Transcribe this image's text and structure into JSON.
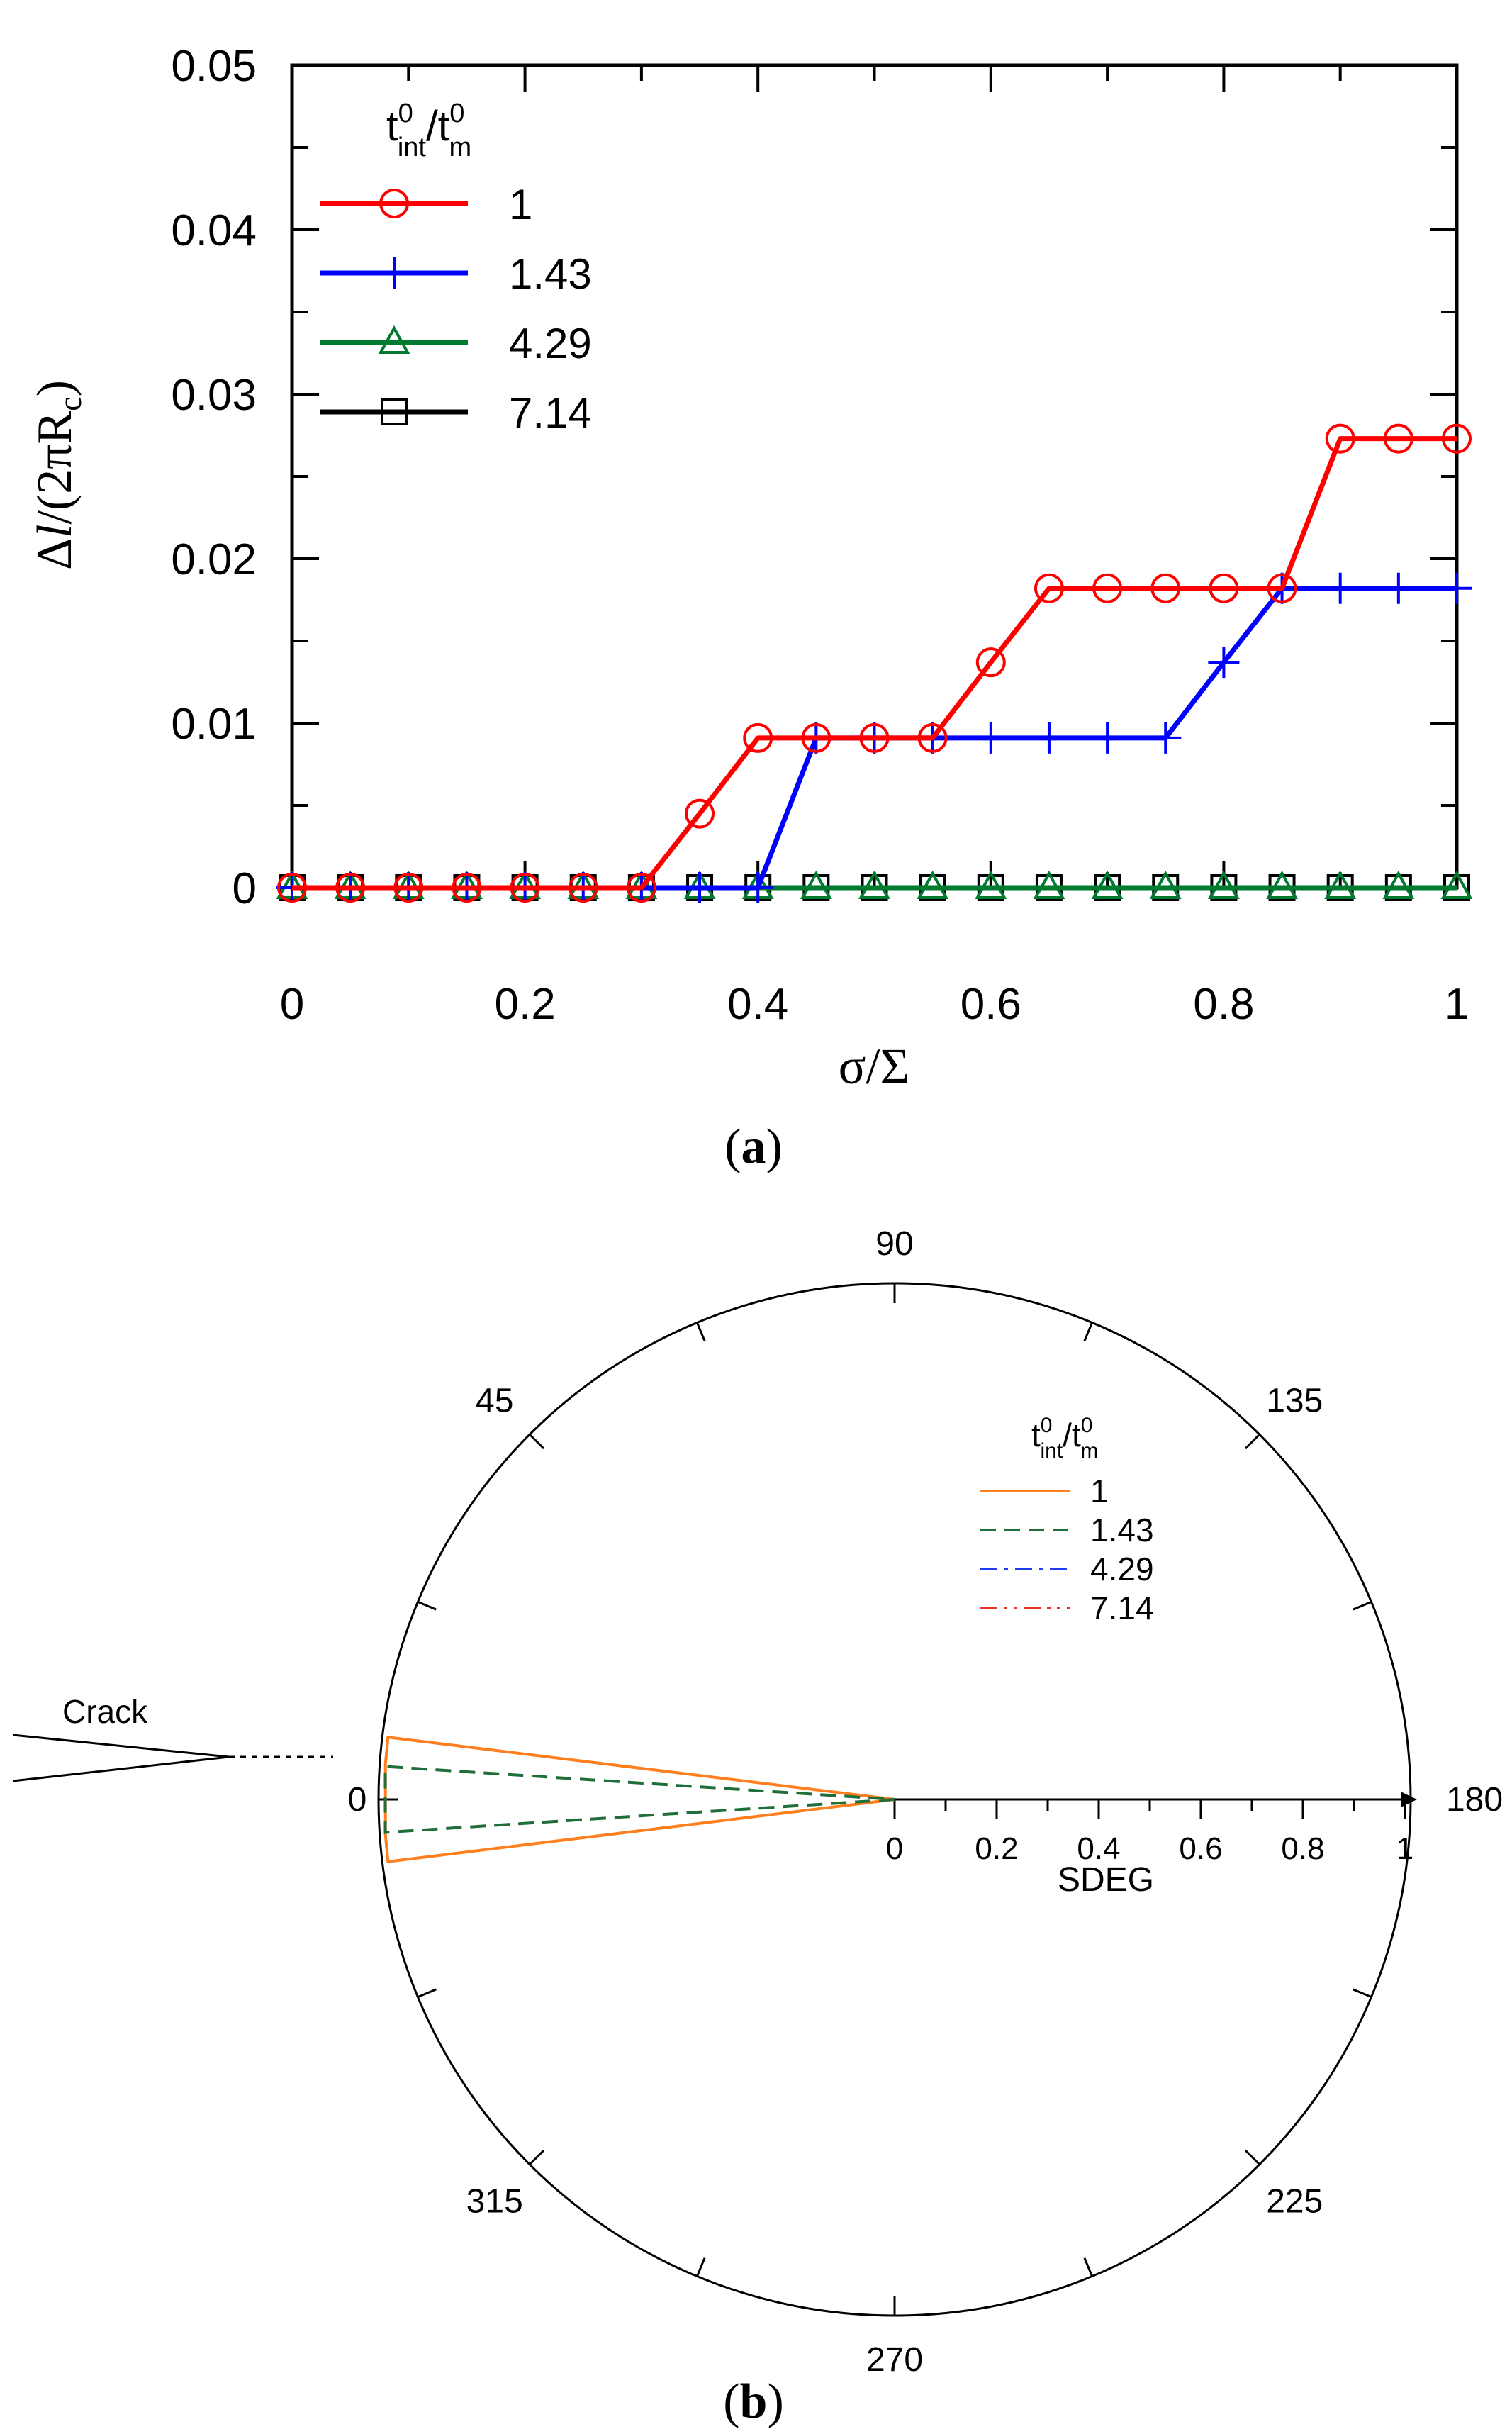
{
  "chart_data": [
    {
      "type": "line",
      "panel_label": "a",
      "xlabel": "σ/Σ",
      "ylabel": "Δl/(2πRc)",
      "xlim": [
        0,
        1
      ],
      "ylim": [
        0,
        0.05
      ],
      "x_ticks": [
        "0",
        "0.2",
        "0.4",
        "0.6",
        "0.8",
        "1"
      ],
      "y_ticks": [
        "0",
        "0.01",
        "0.02",
        "0.03",
        "0.04",
        "0.05"
      ],
      "legend_title": "t0int/t0m",
      "legend_title_parts": {
        "t1": "t",
        "s1": "0",
        "b1": "int",
        "slash": "/",
        "t2": "t",
        "s2": "0",
        "b2": "m"
      },
      "ylabel_parts": {
        "p1": "Δ",
        "p2": "l",
        "p3": "/(2π",
        "p4": "R",
        "p5": "c",
        "p6": ")"
      },
      "legend_position": "top-left",
      "x": [
        0,
        0.05,
        0.1,
        0.15,
        0.2,
        0.25,
        0.3,
        0.35,
        0.4,
        0.45,
        0.5,
        0.55,
        0.6,
        0.65,
        0.7,
        0.75,
        0.8,
        0.85,
        0.9,
        0.95,
        1.0
      ],
      "series": [
        {
          "name": "1",
          "color": "#ff0000",
          "marker": "circle",
          "values": [
            0,
            0,
            0,
            0,
            0,
            0,
            0,
            0.0045,
            0.0091,
            0.0091,
            0.0091,
            0.0091,
            0.0137,
            0.0182,
            0.0182,
            0.0182,
            0.0182,
            0.0182,
            0.0273,
            0.0273,
            0.0273
          ]
        },
        {
          "name": "1.43",
          "color": "#0000ff",
          "marker": "plus",
          "values": [
            0,
            0,
            0,
            0,
            0,
            0,
            0,
            0,
            0,
            0.0091,
            0.0091,
            0.0091,
            0.0091,
            0.0091,
            0.0091,
            0.0091,
            0.0137,
            0.0182,
            0.0182,
            0.0182,
            0.0182
          ]
        },
        {
          "name": "4.29",
          "color": "#007a2f",
          "marker": "triangle",
          "values": [
            0,
            0,
            0,
            0,
            0,
            0,
            0,
            0,
            0,
            0,
            0,
            0,
            0,
            0,
            0,
            0,
            0,
            0,
            0,
            0,
            0
          ]
        },
        {
          "name": "7.14",
          "color": "#000000",
          "marker": "square",
          "values": [
            0,
            0,
            0,
            0,
            0,
            0,
            0,
            0,
            0,
            0,
            0,
            0,
            0,
            0,
            0,
            0,
            0,
            0,
            0,
            0,
            0
          ]
        }
      ]
    },
    {
      "type": "polar",
      "panel_label": "b",
      "radial_label": "SDEG",
      "radial_range": [
        0,
        1
      ],
      "radial_ticks": [
        "0",
        "0.2",
        "0.4",
        "0.6",
        "0.8",
        "1"
      ],
      "angle_labels": [
        "0",
        "45",
        "90",
        "135",
        "180",
        "225",
        "270",
        "315"
      ],
      "annotation": "Crack",
      "legend_title": "t0int/t0m",
      "legend_title_parts": {
        "t1": "t",
        "s1": "0",
        "b1": "int",
        "slash": "/",
        "t2": "t",
        "s2": "0",
        "b2": "m"
      },
      "legend_position": "top-right",
      "series": [
        {
          "name": "1",
          "color": "#ff7f1e",
          "dash": "solid",
          "points": [
            [
              0,
              0
            ],
            [
              -7,
              1.0
            ],
            [
              -4,
              1.0
            ],
            [
              4,
              1.0
            ],
            [
              7,
              1.0
            ],
            [
              0,
              0
            ]
          ]
        },
        {
          "name": "1.43",
          "color": "#1f6e3a",
          "dash": "dashed",
          "points": [
            [
              0,
              0
            ],
            [
              -3.7,
              1.0
            ],
            [
              3.7,
              1.0
            ],
            [
              0,
              0
            ]
          ]
        },
        {
          "name": "4.29",
          "color": "#1f3cf0",
          "dash": "dashdot",
          "points": []
        },
        {
          "name": "7.14",
          "color": "#e8322a",
          "dash": "dashdotdot",
          "points": []
        }
      ]
    }
  ]
}
